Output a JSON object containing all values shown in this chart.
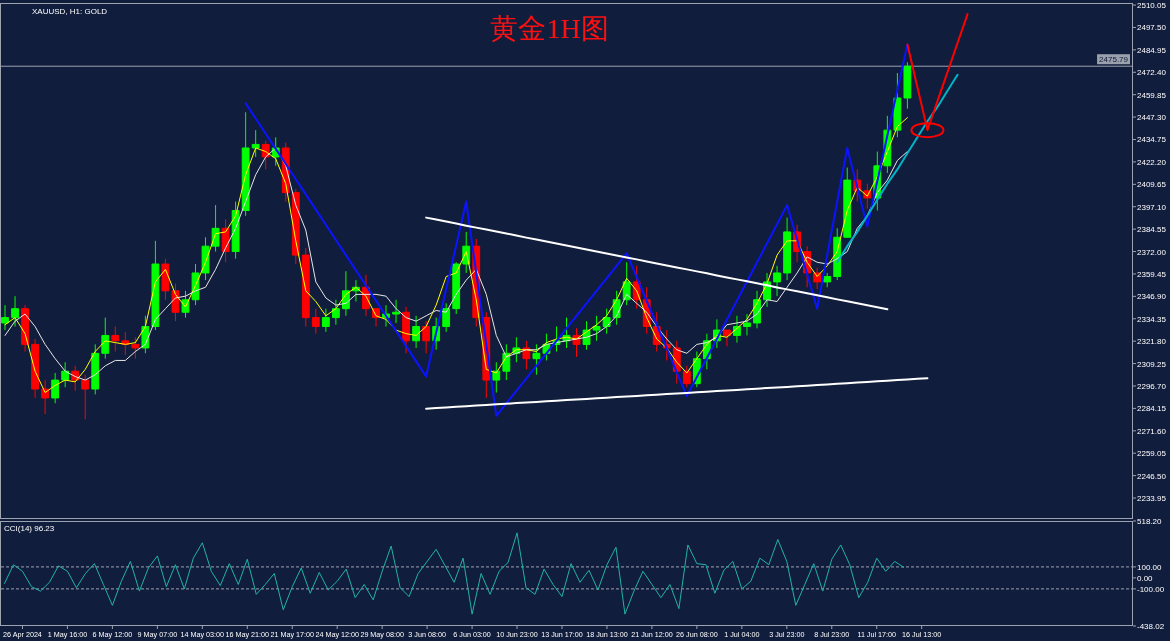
{
  "chart_data": [
    {
      "type": "candlestick",
      "title": "黄金1H图",
      "annotations": [
        "XAUUSD, H1:  GOLD"
      ],
      "categories": [
        null,
        null,
        null,
        null,
        null,
        null,
        null,
        null,
        null,
        null,
        null,
        null,
        null,
        null,
        null,
        null,
        null,
        null,
        null,
        null,
        null,
        null,
        null,
        null,
        null,
        null,
        null,
        null,
        null,
        null,
        null,
        null,
        null,
        null,
        null,
        null,
        null,
        null,
        null,
        null,
        null,
        null,
        null,
        null,
        null,
        null,
        null,
        null,
        null,
        null,
        null,
        null,
        null,
        null,
        null,
        null,
        null,
        null,
        null,
        null,
        null,
        null,
        null,
        null,
        null,
        null,
        null,
        null,
        null,
        null,
        null,
        null,
        null,
        null,
        null,
        null,
        null,
        null,
        null,
        null,
        null,
        null,
        null,
        null,
        null,
        null,
        null,
        null,
        null,
        null,
        null,
        null,
        null,
        null,
        null,
        null,
        null,
        null,
        null,
        null,
        null,
        null,
        null,
        null,
        null,
        null,
        null,
        null,
        null,
        null,
        null,
        null,
        null
      ],
      "ohlc": [
        [
          2332,
          2342,
          2328,
          2335
        ],
        [
          2335,
          2347,
          2330,
          2340
        ],
        [
          2340,
          2342,
          2316,
          2320
        ],
        [
          2320,
          2323,
          2290,
          2295
        ],
        [
          2295,
          2300,
          2281,
          2290
        ],
        [
          2290,
          2304,
          2287,
          2300
        ],
        [
          2300,
          2310,
          2296,
          2305
        ],
        [
          2305,
          2308,
          2294,
          2300
        ],
        [
          2300,
          2303,
          2278,
          2295
        ],
        [
          2295,
          2320,
          2292,
          2315
        ],
        [
          2315,
          2335,
          2312,
          2325
        ],
        [
          2325,
          2330,
          2316,
          2322
        ],
        [
          2322,
          2327,
          2314,
          2320
        ],
        [
          2320,
          2324,
          2312,
          2318
        ],
        [
          2318,
          2336,
          2315,
          2330
        ],
        [
          2330,
          2378,
          2328,
          2365
        ],
        [
          2365,
          2368,
          2345,
          2350
        ],
        [
          2350,
          2354,
          2333,
          2338
        ],
        [
          2338,
          2350,
          2335,
          2345
        ],
        [
          2345,
          2365,
          2342,
          2360
        ],
        [
          2360,
          2380,
          2356,
          2375
        ],
        [
          2375,
          2398,
          2372,
          2385
        ],
        [
          2385,
          2390,
          2366,
          2372
        ],
        [
          2372,
          2400,
          2368,
          2395
        ],
        [
          2395,
          2450,
          2392,
          2430
        ],
        [
          2430,
          2440,
          2425,
          2432
        ],
        [
          2432,
          2434,
          2418,
          2425
        ],
        [
          2425,
          2436,
          2420,
          2430
        ],
        [
          2430,
          2433,
          2400,
          2405
        ],
        [
          2405,
          2407,
          2365,
          2370
        ],
        [
          2370,
          2374,
          2330,
          2335
        ],
        [
          2335,
          2340,
          2326,
          2330
        ],
        [
          2330,
          2340,
          2327,
          2335
        ],
        [
          2335,
          2345,
          2331,
          2340
        ],
        [
          2340,
          2361,
          2336,
          2350
        ],
        [
          2350,
          2356,
          2344,
          2352
        ],
        [
          2352,
          2359,
          2336,
          2340
        ],
        [
          2340,
          2340,
          2330,
          2335
        ],
        [
          2335,
          2342,
          2330,
          2337
        ],
        [
          2337,
          2345,
          2332,
          2338
        ],
        [
          2338,
          2341,
          2315,
          2322
        ],
        [
          2322,
          2336,
          2318,
          2330
        ],
        [
          2330,
          2333,
          2315,
          2322
        ],
        [
          2322,
          2335,
          2317,
          2330
        ],
        [
          2330,
          2343,
          2327,
          2340
        ],
        [
          2340,
          2366,
          2337,
          2365
        ],
        [
          2365,
          2383,
          2360,
          2375
        ],
        [
          2375,
          2379,
          2330,
          2335
        ],
        [
          2335,
          2338,
          2290,
          2300
        ],
        [
          2300,
          2310,
          2293,
          2305
        ],
        [
          2305,
          2320,
          2300,
          2315
        ],
        [
          2315,
          2324,
          2310,
          2318
        ],
        [
          2318,
          2322,
          2306,
          2312
        ],
        [
          2312,
          2320,
          2303,
          2315
        ],
        [
          2315,
          2326,
          2311,
          2320
        ],
        [
          2320,
          2330,
          2316,
          2322
        ],
        [
          2322,
          2335,
          2318,
          2325
        ],
        [
          2325,
          2329,
          2313,
          2320
        ],
        [
          2320,
          2333,
          2317,
          2328
        ],
        [
          2328,
          2336,
          2322,
          2330
        ],
        [
          2330,
          2340,
          2326,
          2335
        ],
        [
          2335,
          2350,
          2331,
          2345
        ],
        [
          2345,
          2366,
          2342,
          2355
        ],
        [
          2355,
          2364,
          2340,
          2345
        ],
        [
          2345,
          2352,
          2326,
          2330
        ],
        [
          2330,
          2338,
          2316,
          2320
        ],
        [
          2320,
          2328,
          2311,
          2318
        ],
        [
          2318,
          2322,
          2298,
          2305
        ],
        [
          2305,
          2308,
          2296,
          2298
        ],
        [
          2298,
          2316,
          2296,
          2312
        ],
        [
          2312,
          2326,
          2306,
          2322
        ],
        [
          2322,
          2334,
          2318,
          2328
        ],
        [
          2328,
          2328,
          2319,
          2325
        ],
        [
          2325,
          2336,
          2321,
          2330
        ],
        [
          2330,
          2337,
          2325,
          2332
        ],
        [
          2332,
          2350,
          2329,
          2345
        ],
        [
          2345,
          2360,
          2341,
          2355
        ],
        [
          2355,
          2364,
          2347,
          2360
        ],
        [
          2360,
          2391,
          2356,
          2383
        ],
        [
          2383,
          2387,
          2366,
          2372
        ],
        [
          2372,
          2375,
          2352,
          2360
        ],
        [
          2360,
          2363,
          2351,
          2355
        ],
        [
          2355,
          2360,
          2352,
          2358
        ],
        [
          2358,
          2385,
          2356,
          2380
        ],
        [
          2380,
          2419,
          2380,
          2412
        ],
        [
          2412,
          2418,
          2400,
          2406
        ],
        [
          2406,
          2410,
          2396,
          2402
        ],
        [
          2402,
          2428,
          2395,
          2420
        ],
        [
          2420,
          2448,
          2416,
          2440
        ],
        [
          2440,
          2472,
          2436,
          2458
        ],
        [
          2458,
          2478,
          2452,
          2475.79
        ],
        null,
        null,
        null,
        null,
        null,
        null,
        null,
        null,
        null,
        null,
        null,
        null,
        null,
        null,
        null,
        null,
        null,
        null,
        null,
        null,
        null,
        null
      ],
      "colors": [
        "#00ff00",
        "#00ff00",
        "#ff0000",
        "#ff0000",
        "#ff0000",
        "#00ff00",
        "#00ff00",
        "#ff0000",
        "#ff0000",
        "#00ff00",
        "#00ff00",
        "#ff0000",
        "#ff0000",
        "#ff0000",
        "#00ff00",
        "#00ff00",
        "#ff0000",
        "#ff0000",
        "#00ff00",
        "#00ff00",
        "#00ff00",
        "#00ff00",
        "#ff0000",
        "#00ff00",
        "#00ff00",
        "#00ff00",
        "#ff0000",
        "#00ff00",
        "#ff0000",
        "#ff0000",
        "#ff0000",
        "#ff0000",
        "#00ff00",
        "#00ff00",
        "#00ff00",
        "#00ff00",
        "#ff0000",
        "#ff0000",
        "#00ff00",
        "#00ff00",
        "#ff0000",
        "#00ff00",
        "#ff0000",
        "#00ff00",
        "#00ff00",
        "#00ff00",
        "#00ff00",
        "#ff0000",
        "#ff0000",
        "#00ff00",
        "#00ff00",
        "#00ff00",
        "#ff0000",
        "#00ff00",
        "#00ff00",
        "#00ff00",
        "#00ff00",
        "#ff0000",
        "#00ff00",
        "#00ff00",
        "#00ff00",
        "#00ff00",
        "#00ff00",
        "#ff0000",
        "#ff0000",
        "#ff0000",
        "#ff0000",
        "#ff0000",
        "#ff0000",
        "#00ff00",
        "#00ff00",
        "#00ff00",
        "#ff0000",
        "#00ff00",
        "#00ff00",
        "#00ff00",
        "#00ff00",
        "#00ff00",
        "#00ff00",
        "#ff0000",
        "#ff0000",
        "#ff0000",
        "#00ff00",
        "#00ff00",
        "#00ff00",
        "#ff0000",
        "#ff0000",
        "#00ff00",
        "#00ff00",
        "#00ff00",
        "#00ff00",
        null,
        null,
        null,
        null,
        null,
        null,
        null,
        null,
        null,
        null,
        null,
        null,
        null,
        null,
        null,
        null,
        null,
        null,
        null,
        null,
        null,
        null
      ],
      "series": [
        {
          "type": "line",
          "color": "#ffff00",
          "values": [
            2331,
            2335,
            2326,
            2305,
            2293,
            2297,
            2300,
            2299,
            2306,
            2316,
            2322,
            2321,
            2320,
            2321,
            2330,
            2355,
            2362,
            2348,
            2341,
            2353,
            2366,
            2382,
            2383,
            2392,
            2415,
            2430,
            2428,
            2424,
            2410,
            2378,
            2350,
            2344,
            2336,
            2340,
            2348,
            2352,
            2347,
            2336,
            2334,
            2328,
            2326,
            2325,
            2330,
            2342,
            2358,
            2360,
            2372,
            2345,
            2306,
            2304,
            2313,
            2317,
            2317,
            2316,
            2321,
            2323,
            2324,
            2323,
            2327,
            2331,
            2336,
            2345,
            2357,
            2350,
            2335,
            2323,
            2318,
            2310,
            2304,
            2312,
            2320,
            2325,
            2324,
            2329,
            2334,
            2343,
            2354,
            2370,
            2378,
            2378,
            2366,
            2358,
            2364,
            2372,
            2395,
            2408,
            2403,
            2414,
            2428,
            2442,
            2447,
            null,
            null,
            null,
            null,
            null,
            null,
            null,
            null,
            null,
            null,
            null,
            null,
            null,
            null,
            null,
            null,
            null,
            null,
            null,
            null,
            null,
            null
          ]
        },
        {
          "type": "line",
          "color": "#e6e6e6",
          "values": [
            2325,
            2333,
            2337,
            2330,
            2320,
            2312,
            2305,
            2302,
            2300,
            2303,
            2308,
            2311,
            2311,
            2316,
            2320,
            2334,
            2340,
            2346,
            2347,
            2350,
            2352,
            2362,
            2374,
            2385,
            2400,
            2415,
            2425,
            2430,
            2420,
            2398,
            2384,
            2355,
            2346,
            2342,
            2343,
            2348,
            2348,
            2348,
            2347,
            2340,
            2335,
            2333,
            2336,
            2339,
            2338,
            2348,
            2356,
            2362,
            2348,
            2325,
            2313,
            2315,
            2317,
            2317,
            2320,
            2321,
            2322,
            2323,
            2324,
            2326,
            2330,
            2336,
            2348,
            2343,
            2338,
            2330,
            2323,
            2317,
            2315,
            2320,
            2321,
            2324,
            2331,
            2332,
            2333,
            2337,
            2345,
            2344,
            2352,
            2360,
            2369,
            2366,
            2365,
            2368,
            2372,
            2385,
            2392,
            2405,
            2412,
            2423,
            2428,
            null,
            null,
            null,
            null,
            null,
            null,
            null,
            null,
            null,
            null,
            null,
            null,
            null,
            null,
            null,
            null,
            null,
            null,
            null,
            null,
            null,
            null
          ]
        },
        {
          "type": "line",
          "color": "#0a14ff",
          "values": [
            null,
            null,
            null,
            null,
            null,
            null,
            null,
            null,
            null,
            null,
            null,
            null,
            null,
            null,
            null,
            null,
            null,
            null,
            null,
            null,
            null,
            null,
            null,
            null,
            2455,
            2446.5,
            2438,
            2429.5,
            2421,
            2412.5,
            2404,
            2395.5,
            2387,
            2378.5,
            2370,
            2361.5,
            2353,
            2344.5,
            2336,
            2327.5,
            2319,
            2310.5,
            2302,
            2326.5,
            2351,
            2375.5,
            2400,
            2360,
            2320,
            2280,
            2287,
            2294,
            2301,
            2308,
            2315,
            2322,
            2329,
            2336,
            2343,
            2350,
            2357,
            2364,
            2371,
            2357.7,
            2344.3,
            2331,
            2317.7,
            2304.3,
            2291,
            2301.7,
            2312.4,
            2323.1,
            2333.8,
            2344.5,
            2355.2,
            2365.9,
            2376.6,
            2387.3,
            2398,
            2378.7,
            2359.3,
            2340,
            2370,
            2400,
            2430,
            2408,
            2386,
            2411.5,
            2437,
            2462.5,
            2488,
            null,
            null,
            null,
            null,
            null,
            null,
            null,
            null,
            null,
            null,
            null,
            null,
            null,
            null,
            null,
            null,
            null,
            null,
            null,
            null,
            null,
            null
          ]
        },
        {
          "type": "line",
          "color": "#ffffff",
          "values": [
            null,
            null,
            null,
            null,
            null,
            null,
            null,
            null,
            null,
            null,
            null,
            null,
            null,
            null,
            null,
            null,
            null,
            null,
            null,
            null,
            null,
            null,
            null,
            null,
            null,
            null,
            null,
            null,
            null,
            null,
            null,
            null,
            null,
            null,
            null,
            null,
            null,
            null,
            null,
            null,
            null,
            null,
            2391.0,
            2389.9,
            2388.8,
            2387.7,
            2386.5,
            2385.4,
            2384.3,
            2383.2,
            2382.1,
            2381.0,
            2379.8,
            2378.7,
            2377.6,
            2376.5,
            2375.4,
            2374.3,
            2373.1,
            2372.0,
            2370.9,
            2369.8,
            2368.7,
            2367.6,
            2366.4,
            2365.3,
            2364.2,
            2363.1,
            2362.0,
            2360.9,
            2359.8,
            2358.6,
            2357.5,
            2356.4,
            2355.3,
            2354.2,
            2353.1,
            2351.9,
            2350.8,
            2349.7,
            2348.6,
            2347.5,
            2346.4,
            2345.2,
            2344.1,
            2343.0,
            2341.9,
            2340.8,
            2339.7,
            null,
            null,
            null,
            null,
            null,
            null,
            null,
            null,
            null,
            null,
            null,
            null,
            null,
            null,
            null,
            null,
            null,
            null,
            null,
            null,
            null,
            null,
            null,
            null
          ]
        },
        {
          "type": "line",
          "color": "#ffffff",
          "values": [
            null,
            null,
            null,
            null,
            null,
            null,
            null,
            null,
            null,
            null,
            null,
            null,
            null,
            null,
            null,
            null,
            null,
            null,
            null,
            null,
            null,
            null,
            null,
            null,
            null,
            null,
            null,
            null,
            null,
            null,
            null,
            null,
            null,
            null,
            null,
            null,
            null,
            null,
            null,
            null,
            null,
            null,
            2284.0,
            2284.3,
            2284.7,
            2285.0,
            2285.4,
            2285.7,
            2286.0,
            2286.4,
            2286.7,
            2287.1,
            2287.4,
            2287.7,
            2288.1,
            2288.4,
            2288.8,
            2289.1,
            2289.4,
            2289.8,
            2290.1,
            2290.5,
            2290.8,
            2291.1,
            2291.5,
            2291.8,
            2292.2,
            2292.5,
            2292.8,
            2293.2,
            2293.5,
            2293.9,
            2294.2,
            2294.5,
            2294.9,
            2295.2,
            2295.6,
            2295.9,
            2296.2,
            2296.6,
            2296.9,
            2297.3,
            2297.6,
            2297.9,
            2298.3,
            2298.6,
            2299.0,
            2299.3,
            2299.6,
            2300.0,
            2300.3,
            2300.7,
            2301.0,
            null,
            null,
            null,
            null,
            null,
            null,
            null,
            null,
            null,
            null,
            null,
            null,
            null,
            null,
            null,
            null,
            null,
            null,
            null,
            null
          ]
        },
        {
          "type": "line",
          "color": "#00b4c8",
          "values": [
            null,
            null,
            null,
            null,
            null,
            null,
            null,
            null,
            null,
            null,
            null,
            null,
            null,
            null,
            null,
            null,
            null,
            null,
            null,
            null,
            null,
            null,
            null,
            null,
            null,
            null,
            null,
            null,
            null,
            null,
            null,
            null,
            null,
            null,
            null,
            null,
            null,
            null,
            null,
            null,
            null,
            null,
            null,
            null,
            null,
            null,
            null,
            null,
            null,
            null,
            null,
            null,
            null,
            null,
            null,
            null,
            null,
            null,
            null,
            null,
            null,
            null,
            null,
            null,
            null,
            null,
            null,
            null,
            null,
            null,
            null,
            null,
            null,
            null,
            null,
            null,
            null,
            null,
            null,
            null,
            null,
            null,
            null,
            2366,
            2375,
            2383,
            2392,
            2401,
            2410,
            2418,
            2427,
            2436,
            2445,
            2453,
            2462,
            2471,
            null,
            null,
            null,
            null,
            null,
            null,
            null,
            null,
            null,
            null,
            null,
            null,
            null,
            null,
            null,
            null,
            null
          ]
        },
        {
          "type": "line",
          "color": "#ff0000",
          "values": [
            null,
            null,
            null,
            null,
            null,
            null,
            null,
            null,
            null,
            null,
            null,
            null,
            null,
            null,
            null,
            null,
            null,
            null,
            null,
            null,
            null,
            null,
            null,
            null,
            null,
            null,
            null,
            null,
            null,
            null,
            null,
            null,
            null,
            null,
            null,
            null,
            null,
            null,
            null,
            null,
            null,
            null,
            null,
            null,
            null,
            null,
            null,
            null,
            null,
            null,
            null,
            null,
            null,
            null,
            null,
            null,
            null,
            null,
            null,
            null,
            null,
            null,
            null,
            null,
            null,
            null,
            null,
            null,
            null,
            null,
            null,
            null,
            null,
            null,
            null,
            null,
            null,
            null,
            null,
            null,
            null,
            null,
            null,
            null,
            null,
            null,
            null,
            null,
            null,
            null,
            2488,
            2464,
            2440,
            2456.3,
            2472.5,
            2488.8,
            2505,
            null,
            null,
            null,
            null,
            null,
            null,
            null,
            null,
            null,
            null,
            null,
            null,
            null,
            null,
            null,
            null
          ]
        }
      ],
      "ylim": [
        2222.2,
        2511.2
      ],
      "yticks": [
        {
          "value": 2510.05,
          "label": "2510.05"
        },
        {
          "value": 2497.5,
          "label": "2497.50"
        },
        {
          "value": 2484.95,
          "label": "2484.95"
        },
        {
          "value": 2472.4,
          "label": "2472.40"
        },
        {
          "value": 2459.85,
          "label": "2459.85"
        },
        {
          "value": 2447.3,
          "label": "2447.30"
        },
        {
          "value": 2434.75,
          "label": "2434.75"
        },
        {
          "value": 2422.2,
          "label": "2422.20"
        },
        {
          "value": 2409.65,
          "label": "2409.65"
        },
        {
          "value": 2397.1,
          "label": "2397.10"
        },
        {
          "value": 2384.55,
          "label": "2384.55"
        },
        {
          "value": 2372,
          "label": "2372.00"
        },
        {
          "value": 2359.45,
          "label": "2359.45"
        },
        {
          "value": 2346.9,
          "label": "2346.90"
        },
        {
          "value": 2334.35,
          "label": "2334.35"
        },
        {
          "value": 2321.8,
          "label": "2321.80"
        },
        {
          "value": 2309.25,
          "label": "2309.25"
        },
        {
          "value": 2296.7,
          "label": "2296.70"
        },
        {
          "value": 2284.15,
          "label": "2284.15"
        },
        {
          "value": 2271.6,
          "label": "2271.60"
        },
        {
          "value": 2259.05,
          "label": "2259.05"
        },
        {
          "value": 2246.5,
          "label": "2246.50"
        },
        {
          "value": 2233.95,
          "label": "2233.95"
        }
      ],
      "ref_lines": [
        {
          "axis": "y",
          "value": 2475.79,
          "label": "2475.79",
          "color": "#9aa0ac"
        }
      ]
    },
    {
      "type": "line",
      "title": "CCI(14) 96.23",
      "color": "#20b2aa",
      "categories": [
        null,
        null,
        "26 Apr 2024",
        null,
        null,
        null,
        null,
        "1 May 16:00",
        null,
        null,
        null,
        null,
        "6 May 12:00",
        null,
        null,
        null,
        null,
        "9 May 07:00",
        null,
        null,
        null,
        null,
        "14 May 03:00",
        null,
        null,
        null,
        null,
        "16 May 21:00",
        null,
        null,
        null,
        null,
        "21 May 17:00",
        null,
        null,
        null,
        null,
        "24 May 12:00",
        null,
        null,
        null,
        null,
        "29 May 08:00",
        null,
        null,
        null,
        null,
        "3 Jun 08:00",
        null,
        null,
        null,
        null,
        "6 Jun 03:00",
        null,
        null,
        null,
        null,
        "10 Jun 23:00",
        null,
        null,
        null,
        null,
        "13 Jun 17:00",
        null,
        null,
        null,
        null,
        "18 Jun 13:00",
        null,
        null,
        null,
        null,
        "21 Jun 12:00",
        null,
        null,
        null,
        null,
        "26 Jun 08:00",
        null,
        null,
        null,
        null,
        "1 Jul 04:00",
        null,
        null,
        null,
        null,
        "3 Jul 23:00",
        null,
        null,
        null,
        null,
        "8 Jul 23:00",
        null,
        null,
        null,
        null,
        "11 Jul 17:00",
        null,
        null,
        null,
        null,
        "16 Jul 13:00",
        null,
        null,
        null,
        null,
        null,
        null,
        null,
        null,
        null,
        null,
        null,
        null,
        null,
        null,
        null,
        null,
        null,
        null,
        null,
        null,
        null,
        null,
        null
      ],
      "values": [
        -50,
        120,
        60,
        -80,
        -120,
        -40,
        110,
        60,
        -90,
        40,
        130,
        -60,
        -250,
        -30,
        150,
        -120,
        90,
        200,
        -80,
        120,
        -100,
        180,
        320,
        60,
        -70,
        130,
        -60,
        170,
        -150,
        -60,
        40,
        -290,
        -80,
        90,
        -140,
        50,
        -110,
        -30,
        80,
        -180,
        -60,
        -200,
        60,
        290,
        -90,
        -170,
        40,
        150,
        260,
        110,
        -40,
        180,
        -330,
        40,
        -150,
        60,
        140,
        410,
        -90,
        -150,
        80,
        -60,
        -170,
        130,
        -40,
        70,
        -110,
        120,
        280,
        -330,
        -120,
        60,
        -60,
        -180,
        -60,
        -280,
        300,
        130,
        120,
        -140,
        70,
        150,
        -100,
        -30,
        180,
        120,
        350,
        150,
        -250,
        -60,
        130,
        -120,
        170,
        300,
        120,
        -180,
        -40,
        180,
        60,
        150,
        96.23,
        null,
        null,
        null,
        null,
        null,
        null,
        null,
        null,
        null,
        null,
        null,
        null,
        null,
        null,
        null,
        null,
        null,
        null,
        null,
        null,
        null,
        null,
        null,
        null,
        null
      ],
      "ylim": [
        -438.02,
        518.2
      ],
      "yticks": [
        {
          "value": 518.2,
          "label": "518.20"
        },
        {
          "value": 100,
          "label": "100.00"
        },
        {
          "value": 0,
          "label": "0.00"
        },
        {
          "value": -100,
          "label": "-100.00"
        },
        {
          "value": -438.02,
          "label": "-438.02"
        }
      ],
      "ref_lines": [
        {
          "axis": "y",
          "value": 100,
          "line_style": "dashed"
        },
        {
          "axis": "y",
          "value": -100,
          "line_style": "dashed"
        }
      ]
    }
  ]
}
